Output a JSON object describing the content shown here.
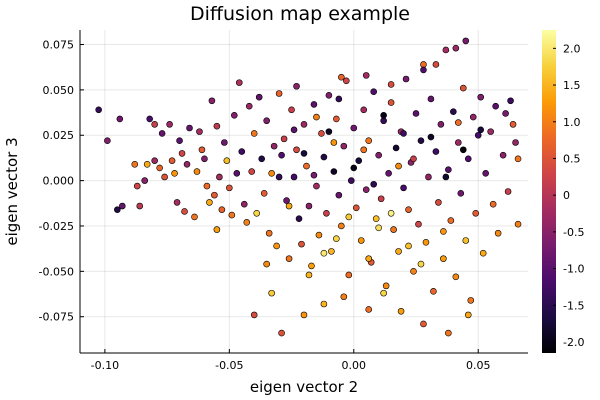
{
  "chart_data": {
    "type": "scatter",
    "title": "Diffusion map example",
    "xlabel": "eigen vector 2",
    "ylabel": "eigen vector 3",
    "xlim": [
      -0.11,
      0.07
    ],
    "ylim": [
      -0.095,
      0.083
    ],
    "x_ticks": [
      -0.1,
      -0.05,
      0.0,
      0.05
    ],
    "x_tick_labels": [
      "-0.10",
      "-0.05",
      "0.00",
      "0.05"
    ],
    "y_ticks": [
      -0.075,
      -0.05,
      -0.025,
      0.0,
      0.025,
      0.05,
      0.075
    ],
    "y_tick_labels": [
      "-0.075",
      "-0.050",
      "-0.025",
      "0.000",
      "0.025",
      "0.050",
      "0.075"
    ],
    "grid": true,
    "legend": "none",
    "colorbar": {
      "colormap": "inferno",
      "range": [
        -2.15,
        2.25
      ],
      "ticks": [
        -2.0,
        -1.5,
        -1.0,
        -0.5,
        0.0,
        0.5,
        1.0,
        1.5,
        2.0
      ],
      "tick_labels": [
        "-2.0",
        "-1.5",
        "-1.0",
        "-0.5",
        "0",
        "0.5",
        "1.0",
        "1.5",
        "2.0"
      ],
      "stops": [
        "#000004",
        "#1b0c41",
        "#4a0c6b",
        "#781c6d",
        "#a52c60",
        "#cf4446",
        "#ed6925",
        "#fb9b06",
        "#f7d13d",
        "#fcffa4"
      ]
    },
    "points": [
      [
        -0.1025,
        0.039,
        -1.4
      ],
      [
        -0.099,
        0.022,
        -0.6
      ],
      [
        -0.094,
        0.034,
        -0.8
      ],
      [
        -0.095,
        -0.016,
        -1.6
      ],
      [
        -0.093,
        -0.014,
        -0.9
      ],
      [
        -0.088,
        0.009,
        0.9
      ],
      [
        -0.087,
        -0.003,
        0.3
      ],
      [
        -0.086,
        -0.014,
        0.1
      ],
      [
        -0.084,
        0.0,
        -0.5
      ],
      [
        -0.083,
        0.009,
        1.4
      ],
      [
        -0.082,
        0.034,
        -1.2
      ],
      [
        -0.08,
        0.031,
        0.2
      ],
      [
        -0.08,
        0.011,
        -0.3
      ],
      [
        -0.078,
        0.007,
        0.7
      ],
      [
        -0.077,
        0.026,
        -0.9
      ],
      [
        -0.076,
        0.002,
        0.5
      ],
      [
        -0.074,
        0.031,
        -0.3
      ],
      [
        -0.073,
        0.011,
        0.6
      ],
      [
        -0.072,
        0.004,
        1.2
      ],
      [
        -0.071,
        -0.012,
        -0.2
      ],
      [
        -0.07,
        0.022,
        -1.0
      ],
      [
        -0.069,
        0.015,
        0.3
      ],
      [
        -0.068,
        -0.017,
        0.4
      ],
      [
        -0.067,
        0.009,
        -0.4
      ],
      [
        -0.066,
        0.029,
        -0.9
      ],
      [
        -0.064,
        -0.02,
        0.9
      ],
      [
        -0.063,
        0.005,
        1.1
      ],
      [
        -0.062,
        0.027,
        -0.2
      ],
      [
        -0.061,
        0.017,
        0.6
      ],
      [
        -0.06,
        0.012,
        -0.6
      ],
      [
        -0.059,
        -0.003,
        0.8
      ],
      [
        -0.058,
        -0.012,
        1.4
      ],
      [
        -0.057,
        0.044,
        -0.5
      ],
      [
        -0.056,
        -0.008,
        0.6
      ],
      [
        -0.055,
        0.03,
        0.1
      ],
      [
        -0.055,
        -0.027,
        1.3
      ],
      [
        -0.054,
        0.002,
        -0.2
      ],
      [
        -0.053,
        -0.016,
        0.7
      ],
      [
        -0.052,
        0.021,
        -0.8
      ],
      [
        -0.051,
        0.011,
        1.6
      ],
      [
        -0.05,
        -0.004,
        0.5
      ],
      [
        -0.049,
        -0.019,
        0.9
      ],
      [
        -0.048,
        0.036,
        -0.6
      ],
      [
        -0.047,
        0.004,
        -1.0
      ],
      [
        -0.046,
        0.054,
        -0.1
      ],
      [
        -0.045,
        0.016,
        -1.3
      ],
      [
        -0.044,
        -0.013,
        -0.4
      ],
      [
        -0.043,
        -0.023,
        1.0
      ],
      [
        -0.042,
        0.041,
        -0.3
      ],
      [
        -0.041,
        0.005,
        0.3
      ],
      [
        -0.04,
        0.026,
        0.9
      ],
      [
        -0.039,
        -0.018,
        1.8
      ],
      [
        -0.038,
        0.046,
        -0.9
      ],
      [
        -0.037,
        0.012,
        -1.6
      ],
      [
        -0.036,
        -0.007,
        0.6
      ],
      [
        -0.035,
        0.033,
        -0.6
      ],
      [
        -0.034,
        -0.029,
        0.9
      ],
      [
        -0.033,
        0.004,
        1.1
      ],
      [
        -0.032,
        0.019,
        -0.4
      ],
      [
        -0.031,
        -0.036,
        1.2
      ],
      [
        -0.03,
        0.048,
        0.7
      ],
      [
        -0.029,
        0.014,
        -1.1
      ],
      [
        -0.028,
        0.023,
        0.2
      ],
      [
        -0.027,
        -0.011,
        -0.8
      ],
      [
        -0.026,
        -0.043,
        0.9
      ],
      [
        -0.025,
        0.039,
        0.2
      ],
      [
        -0.024,
        0.002,
        -1.2
      ],
      [
        -0.023,
        0.017,
        0.4
      ],
      [
        -0.022,
        -0.021,
        -1.5
      ],
      [
        -0.021,
        -0.035,
        0.5
      ],
      [
        -0.02,
        0.031,
        -0.3
      ],
      [
        -0.019,
        0.008,
        0.8
      ],
      [
        -0.018,
        -0.014,
        -0.5
      ],
      [
        -0.017,
        -0.047,
        1.3
      ],
      [
        -0.016,
        0.042,
        -1.0
      ],
      [
        -0.015,
        -0.003,
        -0.2
      ],
      [
        -0.014,
        -0.03,
        1.1
      ],
      [
        -0.013,
        0.026,
        0.4
      ],
      [
        -0.012,
        0.013,
        -1.6
      ],
      [
        -0.011,
        -0.018,
        0.2
      ],
      [
        -0.01,
        0.047,
        -0.6
      ],
      [
        -0.009,
        -0.039,
        1.5
      ],
      [
        -0.008,
        0.005,
        -1.9
      ],
      [
        -0.007,
        0.034,
        0.6
      ],
      [
        -0.006,
        -0.008,
        -0.9
      ],
      [
        -0.005,
        -0.025,
        1.0
      ],
      [
        -0.004,
        0.019,
        -0.4
      ],
      [
        -0.003,
        0.055,
        0.3
      ],
      [
        -0.002,
        -0.052,
        0.8
      ],
      [
        -0.001,
        0.0,
        -1.3
      ],
      [
        0.0,
        0.029,
        -0.8
      ],
      [
        0.001,
        -0.015,
        0.5
      ],
      [
        0.002,
        0.011,
        -1.7
      ],
      [
        0.003,
        -0.033,
        1.2
      ],
      [
        0.004,
        0.039,
        -0.2
      ],
      [
        0.005,
        -0.005,
        -0.5
      ],
      [
        0.006,
        0.022,
        0.9
      ],
      [
        0.007,
        -0.045,
        0.6
      ],
      [
        0.008,
        0.049,
        -1.1
      ],
      [
        0.009,
        -0.021,
        1.6
      ],
      [
        0.01,
        0.014,
        -0.6
      ],
      [
        0.011,
        -0.01,
        0.2
      ],
      [
        0.012,
        0.033,
        -1.4
      ],
      [
        0.013,
        -0.058,
        1.1
      ],
      [
        0.014,
        0.004,
        -0.9
      ],
      [
        0.015,
        0.043,
        0.5
      ],
      [
        0.016,
        -0.027,
        0.9
      ],
      [
        0.017,
        0.018,
        -1.8
      ],
      [
        0.018,
        -0.039,
        1.4
      ],
      [
        0.019,
        0.027,
        -0.3
      ],
      [
        0.02,
        -0.004,
        -1.2
      ],
      [
        0.021,
        0.056,
        -0.7
      ],
      [
        0.022,
        -0.016,
        0.7
      ],
      [
        0.023,
        0.01,
        -0.5
      ],
      [
        0.024,
        -0.05,
        1.0
      ],
      [
        0.025,
        0.037,
        -1.0
      ],
      [
        0.026,
        -0.024,
        0.3
      ],
      [
        0.027,
        0.022,
        -1.6
      ],
      [
        0.028,
        0.064,
        0.8
      ],
      [
        0.029,
        -0.034,
        1.2
      ],
      [
        0.03,
        0.002,
        -0.4
      ],
      [
        0.031,
        0.045,
        -0.9
      ],
      [
        0.032,
        -0.061,
        0.7
      ],
      [
        0.033,
        0.016,
        -1.3
      ],
      [
        0.034,
        -0.012,
        0.4
      ],
      [
        0.035,
        0.031,
        -0.6
      ],
      [
        0.036,
        -0.043,
        1.3
      ],
      [
        0.037,
        0.072,
        -0.2
      ],
      [
        0.038,
        0.006,
        -1.0
      ],
      [
        0.039,
        -0.022,
        0.8
      ],
      [
        0.04,
        0.038,
        -1.5
      ],
      [
        0.041,
        -0.053,
        1.1
      ],
      [
        0.042,
        0.021,
        -0.3
      ],
      [
        0.043,
        -0.007,
        -0.8
      ],
      [
        0.044,
        0.051,
        0.5
      ],
      [
        0.045,
        -0.033,
        1.6
      ],
      [
        0.046,
        0.012,
        -1.1
      ],
      [
        0.047,
        -0.066,
        0.9
      ],
      [
        0.048,
        0.035,
        -0.4
      ],
      [
        0.049,
        -0.018,
        0.6
      ],
      [
        0.05,
        0.025,
        -1.2
      ],
      [
        0.051,
        0.046,
        -0.6
      ],
      [
        0.052,
        -0.04,
        1.4
      ],
      [
        0.053,
        0.004,
        -0.9
      ],
      [
        0.055,
        0.027,
        -0.3
      ],
      [
        0.056,
        -0.013,
        0.8
      ],
      [
        0.057,
        0.041,
        -1.0
      ],
      [
        0.058,
        -0.029,
        1.1
      ],
      [
        0.06,
        0.014,
        -0.5
      ],
      [
        0.061,
        0.037,
        -0.7
      ],
      [
        0.062,
        -0.006,
        0.2
      ],
      [
        0.063,
        0.044,
        -1.3
      ],
      [
        0.064,
        0.031,
        0.6
      ],
      [
        0.065,
        0.021,
        -0.4
      ],
      [
        0.066,
        -0.024,
        1.0
      ],
      [
        0.066,
        0.012,
        0.9
      ],
      [
        0.045,
        0.077,
        -0.7
      ],
      [
        0.041,
        0.073,
        -0.3
      ],
      [
        0.033,
        0.064,
        0.4
      ],
      [
        0.028,
        0.061,
        -1.1
      ],
      [
        -0.005,
        0.057,
        0.7
      ],
      [
        0.005,
        0.058,
        -0.2
      ],
      [
        -0.033,
        -0.062,
        1.7
      ],
      [
        -0.02,
        -0.074,
        1.2
      ],
      [
        -0.012,
        -0.068,
        1.5
      ],
      [
        -0.004,
        -0.064,
        1.0
      ],
      [
        0.006,
        -0.071,
        0.8
      ],
      [
        0.019,
        -0.072,
        1.3
      ],
      [
        0.028,
        -0.079,
        0.6
      ],
      [
        0.038,
        -0.084,
        0.9
      ],
      [
        0.046,
        -0.074,
        1.4
      ],
      [
        -0.029,
        -0.084,
        0.5
      ],
      [
        0.012,
        -0.062,
        1.8
      ],
      [
        -0.04,
        -0.074,
        0.4
      ],
      [
        -0.023,
        0.052,
        -0.5
      ],
      [
        0.015,
        0.053,
        0.4
      ],
      [
        -0.015,
        0.035,
        1.0
      ],
      [
        -0.008,
        0.021,
        1.2
      ],
      [
        0.004,
        0.017,
        0.9
      ],
      [
        0.018,
        0.008,
        1.1
      ],
      [
        -0.002,
        -0.02,
        1.7
      ],
      [
        0.01,
        -0.026,
        1.9
      ],
      [
        -0.012,
        -0.04,
        2.0
      ],
      [
        0.022,
        -0.036,
        1.6
      ],
      [
        -0.026,
        -0.014,
        1.4
      ],
      [
        0.036,
        -0.028,
        1.2
      ],
      [
        0.027,
        -0.046,
        1.8
      ],
      [
        -0.018,
        -0.052,
        1.5
      ],
      [
        -0.035,
        -0.046,
        1.1
      ],
      [
        0.006,
        -0.043,
        1.4
      ],
      [
        0.015,
        -0.018,
        2.1
      ],
      [
        -0.007,
        -0.032,
        1.8
      ],
      [
        0.024,
        0.012,
        0.2
      ],
      [
        -0.01,
        0.027,
        -1.9
      ],
      [
        0.012,
        0.036,
        -2.0
      ],
      [
        0.031,
        0.024,
        -1.9
      ],
      [
        0.0,
        0.007,
        -2.0
      ],
      [
        -0.02,
        0.015,
        -1.7
      ],
      [
        0.037,
        0.002,
        -1.8
      ],
      [
        0.044,
        0.017,
        -2.1
      ],
      [
        0.051,
        0.028,
        -1.7
      ],
      [
        -0.03,
        0.002,
        -1.4
      ],
      [
        0.008,
        -0.002,
        -1.5
      ],
      [
        0.02,
        0.026,
        -1.3
      ],
      [
        -0.016,
        0.003,
        -0.7
      ],
      [
        -0.024,
        0.028,
        -1.0
      ],
      [
        0.042,
        0.032,
        0.8
      ],
      [
        -0.006,
        0.045,
        -1.4
      ]
    ]
  }
}
